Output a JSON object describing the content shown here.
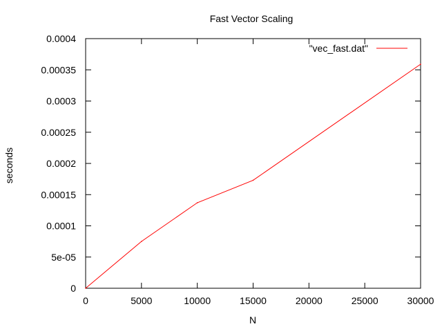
{
  "chart_data": {
    "type": "line",
    "title": "Fast Vector Scaling",
    "xlabel": "N",
    "ylabel": "seconds",
    "xlim": [
      0,
      30000
    ],
    "ylim": [
      0,
      0.0004
    ],
    "x_ticks": [
      0,
      5000,
      10000,
      15000,
      20000,
      25000,
      30000
    ],
    "x_tick_labels": [
      "0",
      "5000",
      "10000",
      "15000",
      "20000",
      "25000",
      "30000"
    ],
    "y_ticks": [
      0,
      5e-05,
      0.0001,
      0.00015,
      0.0002,
      0.00025,
      0.0003,
      0.00035,
      0.0004
    ],
    "y_tick_labels": [
      "0",
      "5e-05",
      "0.0001",
      "0.00015",
      "0.0002",
      "0.00025",
      "0.0003",
      "0.00035",
      "0.0004"
    ],
    "grid": false,
    "legend_position": "top-right",
    "series": [
      {
        "name": "\"vec_fast.dat\"",
        "color": "#ff0000",
        "x": [
          0,
          5000,
          10000,
          15000,
          30000
        ],
        "y": [
          0,
          7.5e-05,
          0.000137,
          0.000173,
          0.000359
        ]
      }
    ]
  }
}
